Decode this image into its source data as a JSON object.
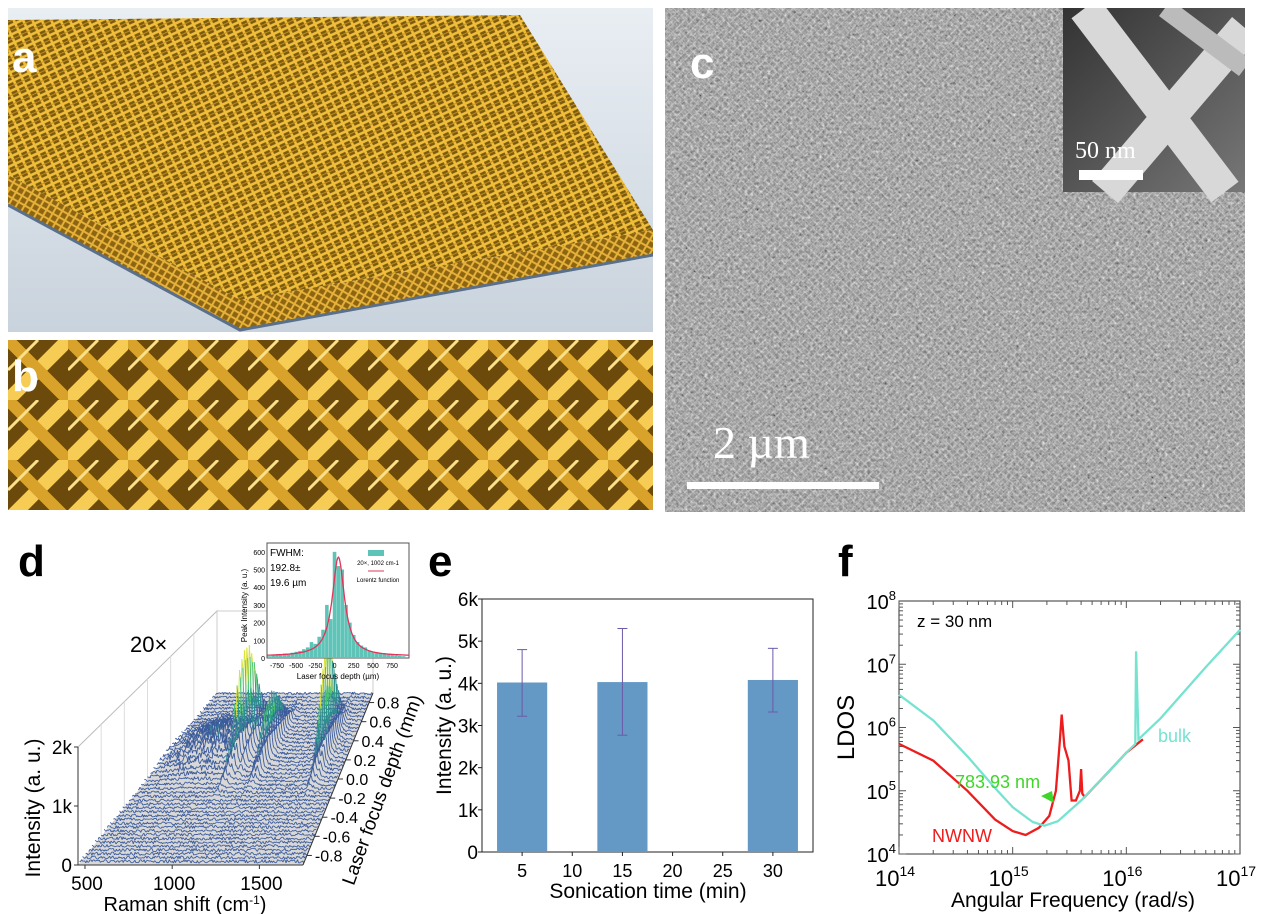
{
  "panels": {
    "a": {
      "label": "a"
    },
    "b": {
      "label": "b"
    },
    "c": {
      "label": "c",
      "scale_bar": "2 µm",
      "inset_scale_bar": "50 nm"
    },
    "d": {
      "label": "d"
    },
    "e": {
      "label": "e"
    },
    "f": {
      "label": "f"
    }
  },
  "chart_data": [
    {
      "panel": "d",
      "type": "3d-waterfall",
      "annotation": "20×",
      "xlabel": "Raman shift (cm-1)",
      "ylabel": "Intensity (a. u.)",
      "zlabel": "Laser focus depth (mm)",
      "x_ticks": [
        "500",
        "1000",
        "1500"
      ],
      "x_tick_values": [
        500,
        1000,
        1500
      ],
      "xlim": [
        460,
        1750
      ],
      "y_ticks": [
        "0",
        "1k",
        "2k"
      ],
      "y_tick_values": [
        0,
        1000,
        2000
      ],
      "z_ticks": [
        "-0.8",
        "-0.6",
        "-0.4",
        "-0.2",
        "0.0",
        "0.2",
        "0.4",
        "0.6",
        "0.8"
      ],
      "z_tick_values": [
        -0.8,
        -0.6,
        -0.4,
        -0.2,
        0.0,
        0.2,
        0.4,
        0.6,
        0.8
      ],
      "zlim": [
        -0.9,
        0.9
      ],
      "inset": {
        "type": "bar+line",
        "annotation": [
          "FWHM:",
          "192.8±",
          "19.6 µm"
        ],
        "xlabel": "Laser focus depth (µm)",
        "ylabel": "Peak Intensity (a. u.)",
        "x_ticks": [
          -750,
          -500,
          -250,
          0,
          250,
          500,
          750
        ],
        "y_ticks": [
          0,
          100,
          200,
          300,
          400,
          500,
          600
        ],
        "xlim": [
          -880,
          970
        ],
        "ylim": [
          0,
          650
        ],
        "legend": [
          "20×, 1002 cm-1",
          "Lorentz function"
        ],
        "legend_position": "top-right",
        "bar_x": [
          -850,
          -800,
          -750,
          -700,
          -650,
          -600,
          -550,
          -500,
          -450,
          -400,
          -350,
          -300,
          -250,
          -200,
          -150,
          -100,
          -50,
          0,
          50,
          100,
          150,
          200,
          250,
          300,
          350,
          400,
          450,
          500,
          550,
          600,
          650,
          700,
          750,
          800,
          850,
          900
        ],
        "bar_values": [
          10,
          15,
          20,
          18,
          25,
          20,
          30,
          35,
          40,
          50,
          60,
          90,
          80,
          120,
          160,
          300,
          220,
          600,
          520,
          500,
          300,
          200,
          130,
          90,
          70,
          60,
          40,
          35,
          30,
          25,
          22,
          20,
          18,
          15,
          12,
          10
        ],
        "lorentz": {
          "center": 50,
          "fwhm": 192.8,
          "peak": 570,
          "baseline": 10
        },
        "colors": {
          "bars": "#5fc4b8",
          "line": "#e0345a"
        }
      }
    },
    {
      "panel": "e",
      "type": "bar",
      "xlabel": "Sonication time (min)",
      "ylabel": "Intensity (a. u.)",
      "x": [
        5,
        15,
        30
      ],
      "values": [
        4020,
        4030,
        4080
      ],
      "error_low": [
        3220,
        2770,
        3320
      ],
      "error_high": [
        4800,
        5300,
        4830
      ],
      "bar_width": 5,
      "xlim": [
        1,
        34
      ],
      "ylim": [
        0,
        6000
      ],
      "x_ticks": [
        "5",
        "10",
        "15",
        "20",
        "25",
        "30"
      ],
      "x_tick_values": [
        5,
        10,
        15,
        20,
        25,
        30
      ],
      "y_ticks": [
        "0",
        "1k",
        "2k",
        "3k",
        "4k",
        "5k",
        "6k"
      ],
      "y_tick_values": [
        0,
        1000,
        2000,
        3000,
        4000,
        5000,
        6000
      ],
      "colors": {
        "bar": "#6499c6",
        "error": "#6b5aa8"
      }
    },
    {
      "panel": "f",
      "type": "line",
      "xscale": "log",
      "yscale": "log",
      "xlabel": "Angular Frequency (rad/s)",
      "ylabel": "LDOS",
      "xlim": [
        100000000000000.0,
        1e+17
      ],
      "ylim": [
        10000.0,
        100000000.0
      ],
      "x_tick_exponents": [
        14,
        15,
        16,
        17
      ],
      "y_tick_exponents": [
        4,
        5,
        6,
        7,
        8
      ],
      "annotations": {
        "z": "z = 30 nm",
        "wavelength": "783.93 nm"
      },
      "series": [
        {
          "name": "NWNW",
          "color": "#ee1c1c",
          "x": [
            100000000000000.0,
            200000000000000.0,
            400000000000000.0,
            700000000000000.0,
            1000000000000000.0,
            1300000000000000.0,
            1700000000000000.0,
            2100000000000000.0,
            2400000000000000.0,
            2600000000000000.0,
            2700000000000000.0,
            2850000000000000.0,
            3100000000000000.0,
            3300000000000000.0,
            3600000000000000.0,
            3900000000000000.0,
            4000000000000000.0,
            4100000000000000.0,
            4300000000000000.0,
            7000000000000000.0,
            1e+16,
            1.4e+16
          ],
          "y": [
            550000.0,
            300000.0,
            100000.0,
            35000.0,
            23000.0,
            20000.0,
            26000.0,
            40000.0,
            100000.0,
            600000.0,
            1600000.0,
            500000.0,
            300000.0,
            70000.0,
            70000.0,
            100000.0,
            220000.0,
            90000.0,
            80000.0,
            200000.0,
            400000.0,
            650000.0
          ]
        },
        {
          "name": "bulk",
          "color": "#76e3d0",
          "x": [
            100000000000000.0,
            200000000000000.0,
            400000000000000.0,
            700000000000000.0,
            1000000000000000.0,
            1500000000000000.0,
            1900000000000000.0,
            2500000000000000.0,
            4000000000000000.0,
            7000000000000000.0,
            1e+16,
            1.2e+16,
            1.22e+16,
            1.28e+16,
            2e+16,
            5e+16,
            1e+17
          ],
          "y": [
            3300000.0,
            1300000.0,
            350000.0,
            110000.0,
            55000.0,
            32000.0,
            28000.0,
            33000.0,
            70000.0,
            200000.0,
            400000.0,
            550000.0,
            16000000.0,
            650000.0,
            1400000.0,
            9000000.0,
            35000000.0
          ]
        }
      ],
      "annotation_color": "#3fd62a"
    }
  ]
}
